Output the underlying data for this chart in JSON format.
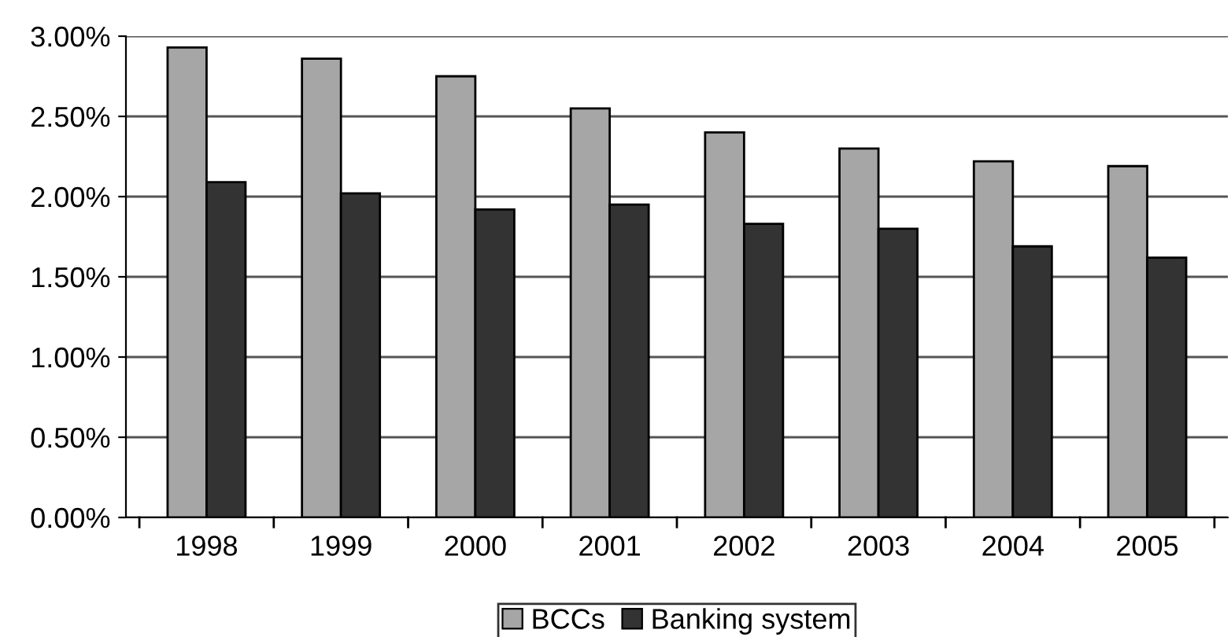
{
  "chart_data": {
    "type": "bar",
    "categories": [
      "1998",
      "1999",
      "2000",
      "2001",
      "2002",
      "2003",
      "2004",
      "2005"
    ],
    "series": [
      {
        "name": "BCCs",
        "color": "#a6a6a6",
        "values": [
          2.93,
          2.86,
          2.75,
          2.55,
          2.4,
          2.3,
          2.22,
          2.19
        ]
      },
      {
        "name": "Banking system",
        "color": "#333333",
        "values": [
          2.09,
          2.02,
          1.92,
          1.95,
          1.83,
          1.8,
          1.69,
          1.62
        ]
      }
    ],
    "ylim": [
      0,
      3
    ],
    "yticks": [
      {
        "value": 0,
        "label": "0.00%"
      },
      {
        "value": 0.5,
        "label": "0.50%"
      },
      {
        "value": 1,
        "label": "1.00%"
      },
      {
        "value": 1.5,
        "label": "1.50%"
      },
      {
        "value": 2,
        "label": "2.00%"
      },
      {
        "value": 2.5,
        "label": "2.50%"
      },
      {
        "value": 3,
        "label": "3.00%"
      }
    ],
    "grid": "y",
    "legend": "bottom"
  }
}
